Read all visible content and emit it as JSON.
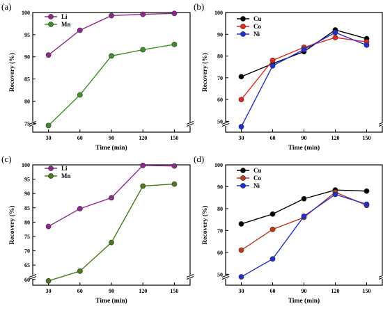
{
  "chart_data": [
    {
      "type": "line",
      "panel_label": "(a)",
      "xlabel": "Time (min)",
      "ylabel": "Recovery (%)",
      "x": [
        30,
        60,
        90,
        120,
        150
      ],
      "xticks": [
        30,
        60,
        90,
        120,
        150
      ],
      "yticks": [
        75,
        80,
        85,
        90,
        95,
        100
      ],
      "ylim": [
        73,
        100
      ],
      "axis_break": true,
      "legend_position": "top-left",
      "grid": false,
      "series": [
        {
          "name": "Li",
          "color": "#8e2a8e",
          "values": [
            90.4,
            96.0,
            99.3,
            99.6,
            99.8
          ]
        },
        {
          "name": "Mn",
          "color": "#3f8f2a",
          "values": [
            74.5,
            81.4,
            90.2,
            91.6,
            92.8
          ]
        }
      ]
    },
    {
      "type": "line",
      "panel_label": "(b)",
      "xlabel": "Time (min)",
      "ylabel": "Recovery (%)",
      "x": [
        30,
        60,
        90,
        120,
        150
      ],
      "xticks": [
        30,
        60,
        90,
        120,
        150
      ],
      "yticks": [
        50,
        60,
        70,
        80,
        90,
        100
      ],
      "ylim": [
        45,
        100
      ],
      "axis_break": true,
      "legend_position": "top-left",
      "grid": false,
      "series": [
        {
          "name": "Cu",
          "color": "#000000",
          "values": [
            70.5,
            76.5,
            82.0,
            92.0,
            88.0
          ]
        },
        {
          "name": "Co",
          "color": "#e8261d",
          "values": [
            60.0,
            78.0,
            84.0,
            88.5,
            86.5
          ]
        },
        {
          "name": "Ni",
          "color": "#1f2fd6",
          "values": [
            47.5,
            75.5,
            83.0,
            90.8,
            85.0
          ]
        }
      ]
    },
    {
      "type": "line",
      "panel_label": "(c)",
      "xlabel": "Time (min)",
      "ylabel": "Recovery (%)",
      "x": [
        30,
        60,
        90,
        120,
        150
      ],
      "xticks": [
        30,
        60,
        90,
        120,
        150
      ],
      "yticks": [
        60,
        65,
        70,
        75,
        80,
        85,
        90,
        95,
        100
      ],
      "ylim": [
        58,
        100
      ],
      "axis_break": true,
      "legend_position": "top-left",
      "grid": false,
      "series": [
        {
          "name": "Li",
          "color": "#8e2a8e",
          "values": [
            78.5,
            84.7,
            88.5,
            99.8,
            99.6
          ]
        },
        {
          "name": "Mn",
          "color": "#4a7a1a",
          "values": [
            59.5,
            62.9,
            72.9,
            92.6,
            93.3
          ]
        }
      ]
    },
    {
      "type": "line",
      "panel_label": "(d)",
      "xlabel": "Time (min)",
      "ylabel": "Recovery (%)",
      "x": [
        30,
        60,
        90,
        120,
        150
      ],
      "xticks": [
        30,
        60,
        90,
        120,
        150
      ],
      "yticks": [
        50,
        60,
        70,
        80,
        90,
        100
      ],
      "ylim": [
        45,
        100
      ],
      "axis_break": true,
      "legend_position": "top-left",
      "grid": false,
      "series": [
        {
          "name": "Cu",
          "color": "#000000",
          "values": [
            73.0,
            77.5,
            84.5,
            88.5,
            88.0
          ]
        },
        {
          "name": "Co",
          "color": "#c0391b",
          "values": [
            61.0,
            70.5,
            76.0,
            87.5,
            81.5
          ]
        },
        {
          "name": "Ni",
          "color": "#1f2fd6",
          "values": [
            48.8,
            57.0,
            76.5,
            86.5,
            82.0
          ]
        }
      ]
    }
  ]
}
